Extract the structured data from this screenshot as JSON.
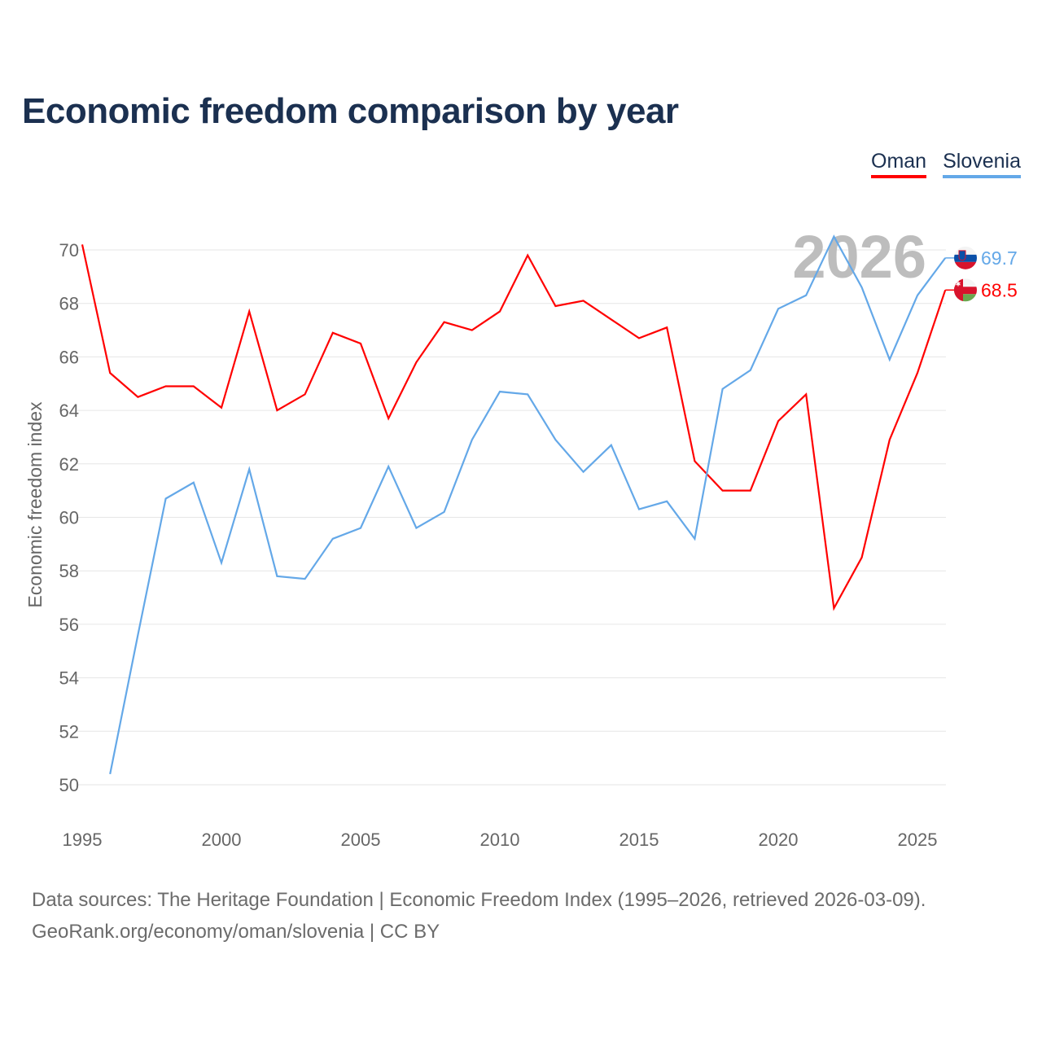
{
  "title": "Economic freedom comparison by year",
  "legend": [
    {
      "name": "Oman",
      "color": "#ff0000"
    },
    {
      "name": "Slovenia",
      "color": "#64a8e8"
    }
  ],
  "year_watermark": "2026",
  "footer": {
    "line1": "Data sources: The Heritage Foundation | Economic Freedom Index (1995–2026, retrieved 2026-03-09).",
    "line2": "GeoRank.org/economy/oman/slovenia | CC BY"
  },
  "chart_data": {
    "type": "line",
    "title": "Economic freedom comparison by year",
    "xlabel": "",
    "ylabel": "Economic freedom index",
    "xlim": [
      1995,
      2026
    ],
    "ylim": [
      50,
      70
    ],
    "x_ticks": [
      "1995",
      "2000",
      "2005",
      "2010",
      "2015",
      "2020",
      "2025"
    ],
    "y_ticks": [
      "50",
      "52",
      "54",
      "56",
      "58",
      "60",
      "62",
      "64",
      "66",
      "68",
      "70"
    ],
    "grid": true,
    "legend_position": "top-right",
    "x": [
      1995,
      1996,
      1997,
      1998,
      1999,
      2000,
      2001,
      2002,
      2003,
      2004,
      2005,
      2006,
      2007,
      2008,
      2009,
      2010,
      2011,
      2012,
      2013,
      2014,
      2015,
      2016,
      2017,
      2018,
      2019,
      2020,
      2021,
      2022,
      2023,
      2024,
      2025,
      2026
    ],
    "series": [
      {
        "name": "Oman",
        "color": "#ff0000",
        "end_label": "68.5",
        "values": [
          70.2,
          65.4,
          64.5,
          64.9,
          64.9,
          64.1,
          67.7,
          64.0,
          64.6,
          66.9,
          66.5,
          63.7,
          65.8,
          67.3,
          67.0,
          67.7,
          69.8,
          67.9,
          68.1,
          67.4,
          66.7,
          67.1,
          62.1,
          61.0,
          61.0,
          63.6,
          64.6,
          56.6,
          58.5,
          62.9,
          65.4,
          68.5
        ]
      },
      {
        "name": "Slovenia",
        "color": "#64a8e8",
        "end_label": "69.7",
        "values": [
          null,
          50.4,
          55.6,
          60.7,
          61.3,
          58.3,
          61.8,
          57.8,
          57.7,
          59.2,
          59.6,
          61.9,
          59.6,
          60.2,
          62.9,
          64.7,
          64.6,
          62.9,
          61.7,
          62.7,
          60.3,
          60.6,
          59.2,
          64.8,
          65.5,
          67.8,
          68.3,
          70.5,
          68.6,
          65.9,
          68.3,
          69.7
        ]
      }
    ]
  }
}
